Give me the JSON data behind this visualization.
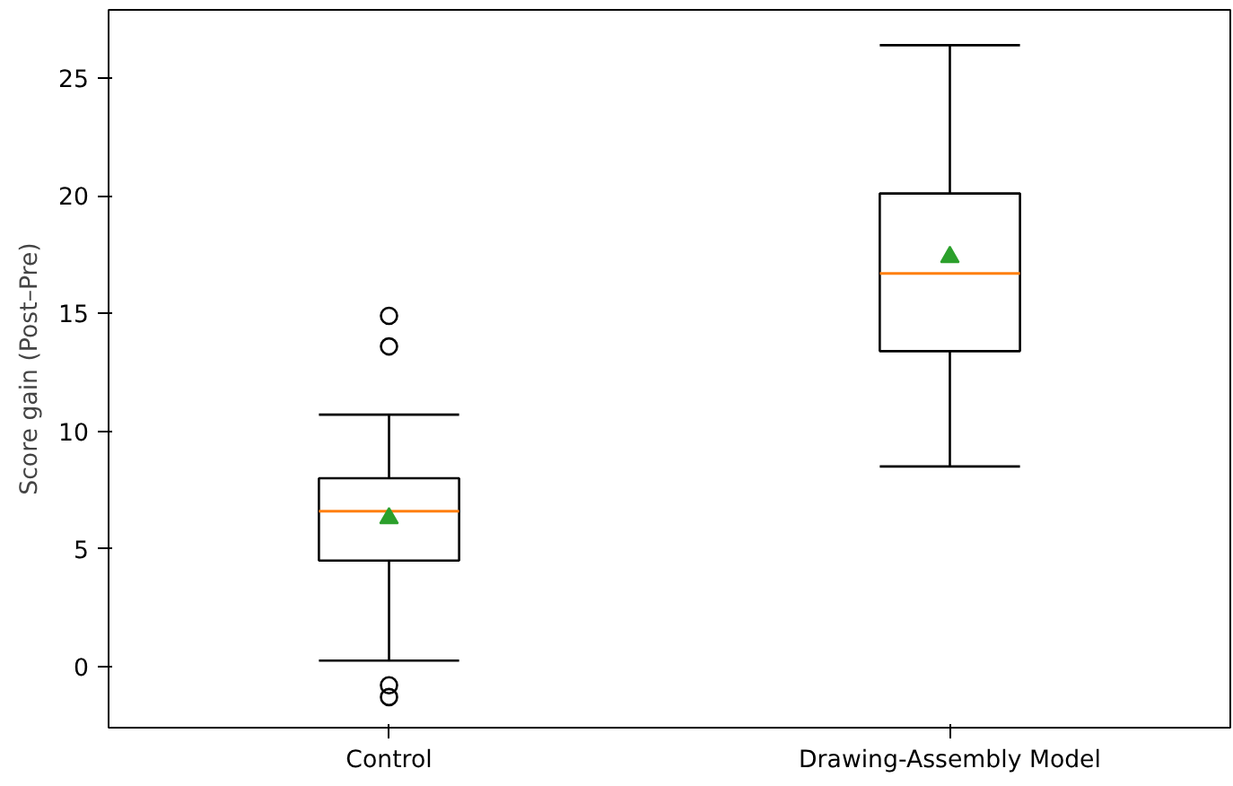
{
  "chart_data": {
    "type": "box",
    "ylabel": "Score gain (Post–Pre)",
    "categories": [
      "Control",
      "Drawing-Assembly Model"
    ],
    "boxes": [
      {
        "low": 0.25,
        "q1": 4.5,
        "median": 6.6,
        "q3": 8.0,
        "high": 10.7,
        "mean": 6.3,
        "outliers": [
          14.9,
          13.6,
          -0.8,
          -1.3
        ]
      },
      {
        "low": 8.5,
        "q1": 13.4,
        "median": 16.7,
        "q3": 20.1,
        "high": 26.4,
        "mean": 17.4
      }
    ],
    "ylim": [
      -2.6,
      27.9
    ],
    "yticks": [
      0,
      5,
      10,
      15,
      20,
      25
    ],
    "grid": false
  }
}
